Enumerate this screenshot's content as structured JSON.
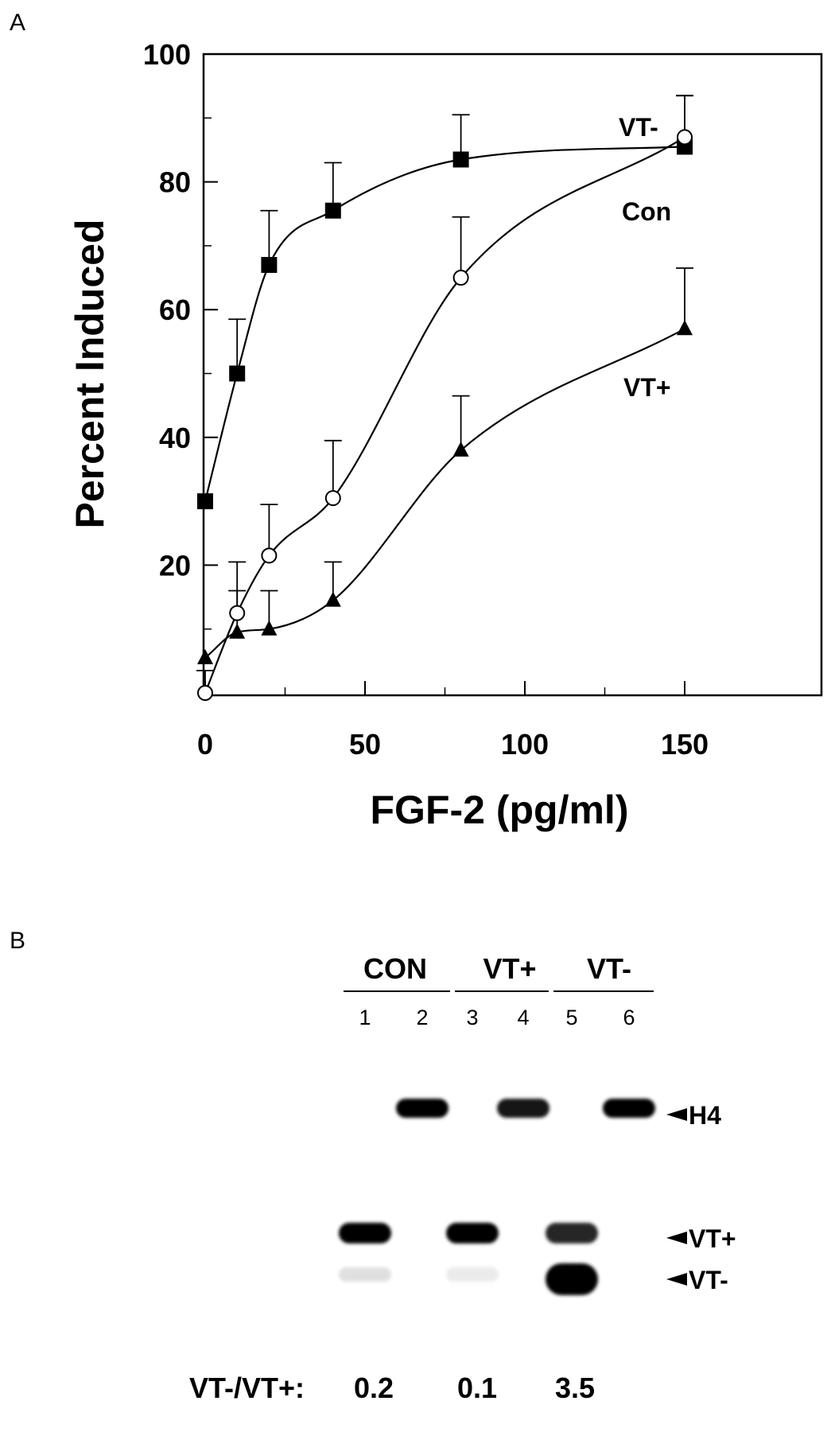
{
  "panel_a": {
    "letter": "A"
  },
  "panel_b": {
    "letter": "B",
    "groups": [
      "CON",
      "VT+",
      "VT-"
    ],
    "lanes": [
      "1",
      "2",
      "3",
      "4",
      "5",
      "6"
    ],
    "band_labels": [
      "H4",
      "VT+",
      "VT-"
    ],
    "ratio_label": "VT-/VT+:",
    "ratios": [
      "0.2",
      "0.1",
      "3.5"
    ],
    "band_intensity": {
      "H4": [
        0,
        1.0,
        0,
        0.9,
        0,
        1.0
      ],
      "VT+": [
        1.0,
        0,
        1.0,
        0,
        0.85,
        0
      ],
      "VT-": [
        0.12,
        0,
        0.08,
        0,
        1.0,
        0
      ]
    }
  },
  "chart_data": {
    "type": "line",
    "title": "",
    "xlabel": "FGF-2 (pg/ml)",
    "ylabel": "Percent Induced",
    "xlim": [
      0,
      167
    ],
    "ylim": [
      0,
      100
    ],
    "x_ticks": [
      0,
      50,
      100,
      150
    ],
    "y_ticks": [
      20,
      40,
      60,
      80,
      100
    ],
    "grid": false,
    "series": [
      {
        "name": "VT-",
        "marker": "filled-square",
        "x": [
          0,
          10,
          20,
          40,
          80,
          150
        ],
        "y": [
          30,
          50,
          67,
          75.5,
          83.5,
          85.5
        ],
        "error_upper": [
          null,
          58.5,
          75.5,
          83,
          90.5,
          93.5
        ],
        "color": "#000000"
      },
      {
        "name": "Con",
        "marker": "open-circle",
        "x": [
          0,
          10,
          20,
          40,
          80,
          150
        ],
        "y": [
          0,
          12.5,
          21.5,
          30.5,
          65,
          87
        ],
        "error_upper": [
          3.5,
          20.5,
          29.5,
          39.5,
          74.5,
          93.5
        ],
        "color": "#000000"
      },
      {
        "name": "VT+",
        "marker": "filled-triangle",
        "x": [
          0,
          10,
          20,
          40,
          80,
          150
        ],
        "y": [
          5.5,
          9.5,
          10,
          14.5,
          38,
          57
        ],
        "error_upper": [
          null,
          16,
          16,
          20.5,
          46.5,
          66.5
        ],
        "color": "#000000"
      }
    ]
  }
}
